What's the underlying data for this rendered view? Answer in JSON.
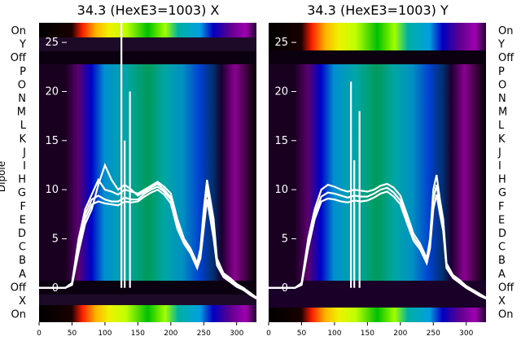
{
  "chart_data": [
    {
      "type": "heatmap",
      "title": "34.3 (HexE3=1003) X",
      "ylabel": "Dipole",
      "xlim": [
        0,
        330
      ],
      "xticks": [
        0,
        50,
        100,
        150,
        200,
        250,
        300
      ],
      "overlay_ylim": [
        -3.5,
        27
      ],
      "overlay_yticks": [
        0,
        5,
        10,
        15,
        20,
        25
      ],
      "rows": [
        "On",
        "Y",
        "Off",
        "P",
        "O",
        "N",
        "M",
        "L",
        "K",
        "J",
        "I",
        "H",
        "G",
        "F",
        "E",
        "D",
        "C",
        "B",
        "A",
        "Off",
        "X",
        "On"
      ],
      "colormap": "nipy_spectral",
      "series": [
        {
          "x": [
            0,
            40,
            50,
            60,
            70,
            80,
            90,
            100,
            110,
            120,
            130,
            140,
            150,
            160,
            170,
            180,
            190,
            200,
            210,
            220,
            230,
            240,
            245,
            250,
            255,
            260,
            265,
            270,
            280,
            290,
            300,
            310,
            320,
            330
          ],
          "y": [
            0,
            0,
            0.5,
            5,
            8,
            9.5,
            11,
            10,
            9.8,
            9.5,
            10,
            9.8,
            9.6,
            10,
            10.4,
            10.8,
            10.3,
            9.6,
            7,
            5,
            4,
            2.5,
            4,
            8,
            11,
            9,
            7,
            3,
            1.5,
            1,
            0.4,
            0,
            -0.5,
            -1
          ]
        },
        {
          "x": [
            0,
            40,
            50,
            60,
            70,
            80,
            90,
            100,
            110,
            120,
            130,
            140,
            150,
            160,
            170,
            180,
            190,
            200,
            210,
            220,
            230,
            240,
            245,
            250,
            255,
            260,
            265,
            270,
            280,
            290,
            300,
            310,
            320,
            330
          ],
          "y": [
            0,
            0,
            0.5,
            4.5,
            7.5,
            9,
            9.4,
            9,
            8.8,
            8.8,
            9.2,
            9,
            9,
            9.6,
            10,
            10.3,
            9.8,
            9,
            6.5,
            4.8,
            3.8,
            2.3,
            3.5,
            7,
            10,
            8,
            6,
            2.6,
            1.3,
            0.8,
            0.2,
            -0.1,
            -0.6,
            -1
          ]
        },
        {
          "x": [
            0,
            40,
            50,
            60,
            70,
            80,
            90,
            100,
            110,
            120,
            130,
            140,
            150,
            160,
            170,
            180,
            190,
            200,
            210,
            220,
            230,
            240,
            245,
            250,
            255,
            260,
            265,
            270,
            280,
            290,
            300,
            310,
            320,
            330
          ],
          "y": [
            0,
            0,
            0.4,
            4,
            7,
            8.5,
            8.8,
            8.6,
            8.5,
            8.4,
            8.8,
            8.7,
            8.8,
            9.3,
            9.7,
            10,
            9.5,
            8.6,
            6,
            4.5,
            3.5,
            2,
            3,
            6,
            9,
            7,
            5,
            2.3,
            1.1,
            0.6,
            0.1,
            -0.2,
            -0.7,
            -1.1
          ]
        },
        {
          "x": [
            0,
            40,
            50,
            60,
            70,
            80,
            90,
            100,
            110,
            120,
            130,
            140,
            150,
            160,
            170,
            180,
            190,
            200,
            210,
            220,
            230,
            240,
            245,
            250,
            255,
            260,
            265,
            270,
            280,
            290,
            300,
            310,
            320,
            330
          ],
          "y": [
            0,
            0,
            0.3,
            3.6,
            6.5,
            8,
            10.5,
            12.5,
            11,
            10,
            10.5,
            10,
            9.4,
            9.8,
            10.2,
            10.6,
            10,
            9.2,
            6.8,
            5,
            3.8,
            2.4,
            3.6,
            7.5,
            10.5,
            8.5,
            6.5,
            2.8,
            1.4,
            0.9,
            0.3,
            0,
            -0.5,
            -1
          ]
        }
      ],
      "spikes": [
        {
          "x": 125,
          "y": 27
        },
        {
          "x": 130,
          "y": 15
        },
        {
          "x": 138,
          "y": 20
        }
      ]
    },
    {
      "type": "heatmap",
      "title": "34.3 (HexE3=1003) Y",
      "rows": [
        "On",
        "Y",
        "Off",
        "P",
        "O",
        "N",
        "M",
        "L",
        "K",
        "J",
        "I",
        "H",
        "G",
        "F",
        "E",
        "D",
        "C",
        "B",
        "A",
        "Off",
        "X",
        "On"
      ],
      "xlim": [
        0,
        330
      ],
      "xticks": [
        0,
        50,
        100,
        150,
        200,
        250,
        300
      ],
      "overlay_ylim": [
        -3.5,
        27
      ],
      "overlay_yticks": [
        0,
        5,
        10,
        15,
        20,
        25
      ],
      "colormap": "nipy_spectral",
      "series": [
        {
          "x": [
            0,
            40,
            50,
            60,
            70,
            80,
            90,
            100,
            110,
            120,
            130,
            140,
            150,
            160,
            170,
            180,
            190,
            200,
            210,
            220,
            230,
            240,
            245,
            250,
            255,
            260,
            265,
            270,
            280,
            290,
            300,
            310,
            320,
            330
          ],
          "y": [
            0,
            0,
            0.5,
            5,
            8,
            10,
            10.5,
            10.3,
            10,
            9.8,
            10,
            9.9,
            9.8,
            10,
            10.4,
            10.6,
            10.2,
            9.4,
            7.5,
            5.5,
            4.5,
            3,
            5,
            10,
            11.5,
            9,
            7,
            2.5,
            1.3,
            0.8,
            0.2,
            -0.2,
            -0.6,
            -1
          ]
        },
        {
          "x": [
            0,
            40,
            50,
            60,
            70,
            80,
            90,
            100,
            110,
            120,
            130,
            140,
            150,
            160,
            170,
            180,
            190,
            200,
            210,
            220,
            230,
            240,
            245,
            250,
            255,
            260,
            265,
            270,
            280,
            290,
            300,
            310,
            320,
            330
          ],
          "y": [
            0,
            0,
            0.4,
            4.5,
            7.5,
            9.3,
            9.7,
            9.6,
            9.4,
            9.2,
            9.4,
            9.3,
            9.3,
            9.6,
            10,
            10.2,
            9.7,
            8.9,
            7,
            5.1,
            4.2,
            2.8,
            4.5,
            9,
            10.5,
            8.2,
            6.3,
            2.2,
            1.1,
            0.6,
            0.1,
            -0.3,
            -0.7,
            -1.1
          ]
        },
        {
          "x": [
            0,
            40,
            50,
            60,
            70,
            80,
            90,
            100,
            110,
            120,
            130,
            140,
            150,
            160,
            170,
            180,
            190,
            200,
            210,
            220,
            230,
            240,
            245,
            250,
            255,
            260,
            265,
            270,
            280,
            290,
            300,
            310,
            320,
            330
          ],
          "y": [
            0,
            0,
            0.3,
            4,
            7,
            8.8,
            9.1,
            9,
            8.8,
            8.7,
            8.9,
            8.8,
            8.9,
            9.2,
            9.6,
            9.8,
            9.3,
            8.5,
            6.6,
            4.8,
            3.9,
            2.5,
            4,
            8,
            9.5,
            7.5,
            5.8,
            2,
            1,
            0.5,
            0,
            -0.4,
            -0.8,
            -1.1
          ]
        }
      ],
      "spikes": [
        {
          "x": 125,
          "y": 21
        },
        {
          "x": 130,
          "y": 13
        },
        {
          "x": 138,
          "y": 18
        }
      ]
    }
  ]
}
